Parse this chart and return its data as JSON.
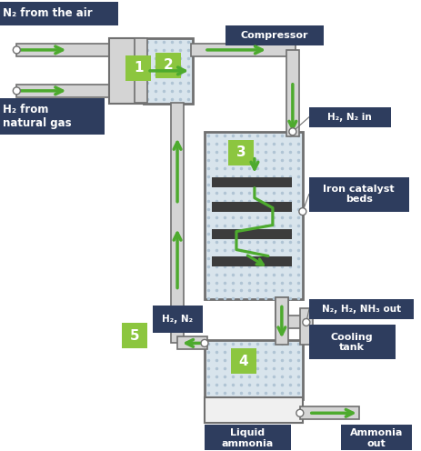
{
  "bg_color": "#ffffff",
  "pipe_fill": "#d4d4d4",
  "pipe_edge": "#707070",
  "dotted_fill": "#d8e4ec",
  "dot_color": "#b0c4d4",
  "green": "#4daa2e",
  "dark_box": "#2e3d5e",
  "num_box": "#8cc63f",
  "cat_bed": "#3c3c3c",
  "labels": {
    "n2_air": "N₂ from the air",
    "h2_gas": "H₂ from\nnatural gas",
    "compressor": "Compressor",
    "h2n2_in": "H₂, N₂ in",
    "iron_catalyst": "Iron catalyst\nbeds",
    "n2h2nh3_out": "N₂, H₂, NH₃ out",
    "cooling_tank": "Cooling\ntank",
    "h2n2_label": "H₂, N₂",
    "liquid_ammonia": "Liquid\nammonia",
    "ammonia_out": "Ammonia\nout"
  }
}
